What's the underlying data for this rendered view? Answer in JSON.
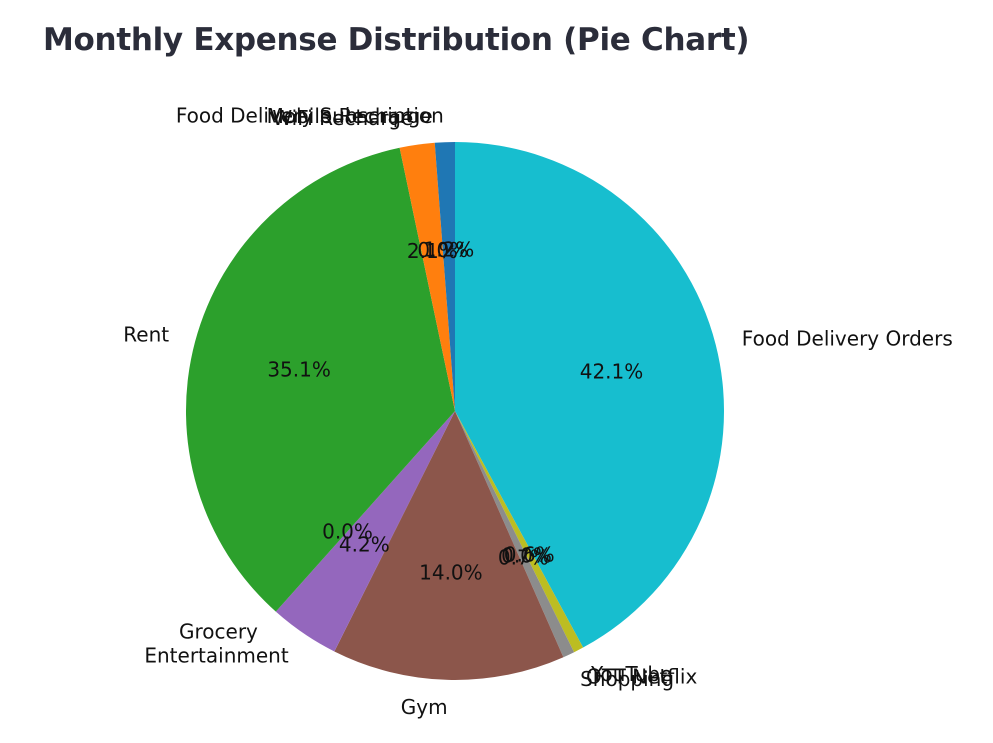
{
  "chart_data": {
    "type": "pie",
    "title": "Monthly Expense Distribution (Pie Chart)",
    "start_angle_deg": 90,
    "direction": "clockwise",
    "slices": [
      {
        "label": "Food Delivery Orders",
        "pct_label": "42.1%",
        "value": 42.1,
        "color": "#17becf"
      },
      {
        "label": "YouTube",
        "pct_label": "0.6%",
        "value": 0.6,
        "color": "#bcbd22"
      },
      {
        "label": "OTT Netflix",
        "pct_label": "0.0%",
        "value": 0.0,
        "color": "#7f7f7f"
      },
      {
        "label": "Shopping",
        "pct_label": "0.7%",
        "value": 0.7,
        "color": "#8c8c8c"
      },
      {
        "label": "Gym",
        "pct_label": "14.0%",
        "value": 14.0,
        "color": "#8c564b"
      },
      {
        "label": "Entertainment",
        "pct_label": "4.2%",
        "value": 4.2,
        "color": "#9467bd"
      },
      {
        "label": "Grocery",
        "pct_label": "0.0%",
        "value": 0.0,
        "color": "#d62728"
      },
      {
        "label": "Rent",
        "pct_label": "35.1%",
        "value": 35.1,
        "color": "#2ca02c"
      },
      {
        "label": "WiFi Recharge",
        "pct_label": "2.1%",
        "value": 2.1,
        "color": "#ff7f0e"
      },
      {
        "label": "Mobile Recharge",
        "pct_label": "0.0%",
        "value": 0.0,
        "color": "#ff7f0e"
      },
      {
        "label": "Food Delivery Subscription",
        "pct_label": "1.2%",
        "value": 1.2,
        "color": "#1f77b4"
      }
    ]
  }
}
